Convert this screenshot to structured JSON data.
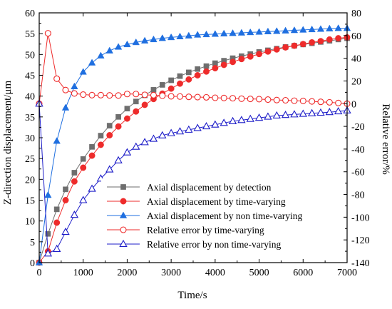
{
  "chart_data": {
    "type": "line",
    "xlabel": "Time/s",
    "ylabel_left": "Z-direction displacement/μm",
    "ylabel_right": "Relative error/%",
    "xlim": [
      0,
      7000
    ],
    "ylim_left": [
      0,
      60
    ],
    "ylim_right": [
      -140,
      80
    ],
    "x_ticks": [
      0,
      1000,
      2000,
      3000,
      4000,
      5000,
      6000,
      7000
    ],
    "y_left_ticks": [
      0,
      5,
      10,
      15,
      20,
      25,
      30,
      35,
      40,
      45,
      50,
      55,
      60
    ],
    "y_right_ticks": [
      -140,
      -120,
      -100,
      -80,
      -60,
      -40,
      -20,
      0,
      20,
      40,
      60,
      80
    ],
    "grid": false,
    "legend_position": "bottom-right",
    "x": [
      0,
      200,
      400,
      600,
      800,
      1000,
      1200,
      1400,
      1600,
      1800,
      2000,
      2200,
      2400,
      2600,
      2800,
      3000,
      3200,
      3400,
      3600,
      3800,
      4000,
      4200,
      4400,
      4600,
      4800,
      5000,
      5200,
      5400,
      5600,
      5800,
      6000,
      6200,
      6400,
      6600,
      6800,
      7000
    ],
    "series": [
      {
        "name": "Axial displacement by detection",
        "axis": "left",
        "color": "#6e6e6e",
        "marker": "square-filled",
        "values": [
          0,
          6.9,
          12.8,
          17.6,
          21.6,
          24.9,
          27.8,
          30.5,
          32.9,
          35.0,
          37.0,
          38.7,
          40.2,
          41.5,
          42.7,
          43.8,
          44.8,
          45.7,
          46.5,
          47.2,
          47.9,
          48.5,
          49.1,
          49.6,
          50.1,
          50.6,
          51.0,
          51.4,
          51.8,
          52.1,
          52.4,
          52.7,
          53.0,
          53.3,
          53.6,
          53.9
        ]
      },
      {
        "name": "Axial displacement by time-varying",
        "axis": "left",
        "color": "#ee2b2b",
        "marker": "circle-filled",
        "values": [
          0,
          2.7,
          9.6,
          15.0,
          19.5,
          22.8,
          25.7,
          28.3,
          30.6,
          32.7,
          34.6,
          36.3,
          37.9,
          39.3,
          40.6,
          41.8,
          43.0,
          44.0,
          45.0,
          45.9,
          46.7,
          47.5,
          48.2,
          48.9,
          49.5,
          50.1,
          50.7,
          51.2,
          51.7,
          52.1,
          52.5,
          52.9,
          53.2,
          53.6,
          53.9,
          54.1
        ]
      },
      {
        "name": "Axial displacement by non time-varying",
        "axis": "left",
        "color": "#1f6fe0",
        "marker": "triangle-filled",
        "values": [
          0,
          16.2,
          29.2,
          37.2,
          42.3,
          45.8,
          48.0,
          49.7,
          50.9,
          51.8,
          52.4,
          52.9,
          53.3,
          53.6,
          53.9,
          54.1,
          54.3,
          54.5,
          54.7,
          54.8,
          54.9,
          55.0,
          55.1,
          55.2,
          55.3,
          55.4,
          55.5,
          55.6,
          55.7,
          55.8,
          55.9,
          56.0,
          56.1,
          56.2,
          56.3,
          56.3
        ]
      },
      {
        "name": "Relative error by time-varying",
        "axis": "right",
        "color": "#ee2b2b",
        "marker": "circle-open",
        "values": [
          0,
          62,
          22,
          12,
          9,
          8,
          7.5,
          7.5,
          7.3,
          7.2,
          8.5,
          8.5,
          7.8,
          7.5,
          7,
          6.5,
          6.3,
          6,
          5.8,
          5.6,
          5.2,
          5,
          4.8,
          4.4,
          4.2,
          4,
          3.6,
          3.2,
          3,
          2.6,
          2.4,
          2,
          1.6,
          1.2,
          0.6,
          0
        ]
      },
      {
        "name": "Relative error by non time-varying",
        "axis": "right",
        "color": "#1c1cc8",
        "marker": "triangle-open",
        "values": [
          0,
          -132,
          -128,
          -113,
          -98,
          -85,
          -75,
          -66,
          -58,
          -50,
          -43,
          -38,
          -34,
          -31,
          -28,
          -26,
          -24.5,
          -23,
          -21.5,
          -20,
          -18.5,
          -17,
          -15.5,
          -14.5,
          -13.5,
          -12.5,
          -11.5,
          -10.5,
          -10,
          -9.5,
          -9,
          -8.5,
          -8,
          -7.5,
          -6.8,
          -6
        ]
      }
    ]
  }
}
